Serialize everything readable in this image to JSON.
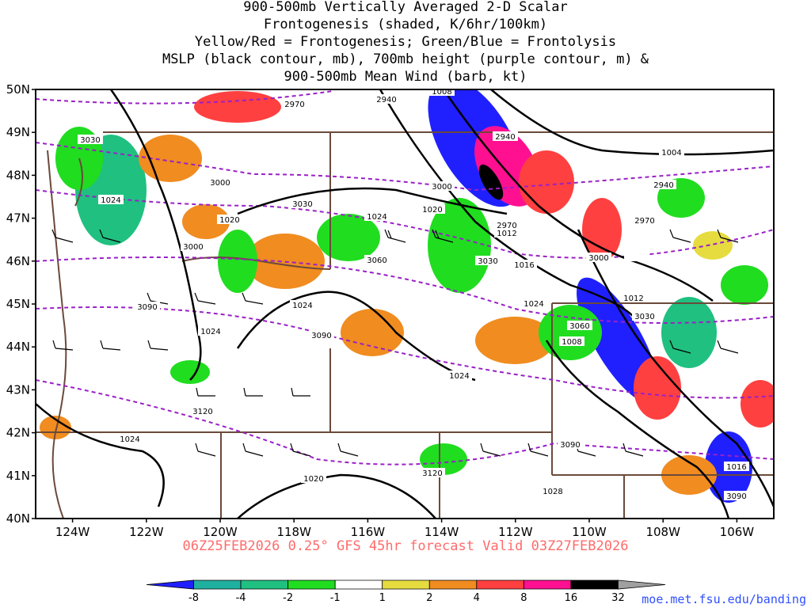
{
  "title_lines": [
    "900-500mb Vertically Averaged 2-D Scalar",
    "Frontogenesis (shaded, K/6hr/100km)",
    "Yellow/Red = Frontogenesis;  Green/Blue = Frontolysis",
    "MSLP (black contour, mb), 700mb height (purple contour, m) &",
    "900-500mb Mean Wind (barb, kt)"
  ],
  "valid_text": "06Z25FEB2026 0.25° GFS 45hr forecast Valid 03Z27FEB2026",
  "credit_text": "moe.met.fsu.edu/banding",
  "map": {
    "lon_range": [
      -125,
      -105
    ],
    "lat_range": [
      40,
      50
    ],
    "lat_ticks": [
      "40N",
      "41N",
      "42N",
      "43N",
      "44N",
      "45N",
      "46N",
      "47N",
      "48N",
      "49N",
      "50N"
    ],
    "lon_ticks": [
      "124W",
      "122W",
      "120W",
      "118W",
      "116W",
      "114W",
      "112W",
      "110W",
      "108W",
      "106W"
    ]
  },
  "colorbar": {
    "labels": [
      "-8",
      "-4",
      "-2",
      "-1",
      "1",
      "2",
      "4",
      "8",
      "16",
      "32"
    ],
    "colors": [
      "#2020ff",
      "#20b0a0",
      "#20c080",
      "#20dd20",
      "#ffffff",
      "#e6dc40",
      "#f08c20",
      "#ff4040",
      "#ff1090",
      "#000000",
      "#a0a0a0"
    ]
  },
  "mslp_labels": [
    "1008",
    "1004",
    "1012",
    "1012",
    "1016",
    "1016",
    "1020",
    "1020",
    "1020",
    "1024",
    "1024",
    "1024",
    "1024",
    "1024",
    "1024",
    "1024",
    "1028",
    "1008"
  ],
  "height_labels": [
    "2970",
    "2940",
    "2940",
    "2940",
    "2970",
    "2970",
    "3030",
    "3000",
    "3000",
    "3000",
    "3000",
    "3030",
    "3060",
    "3060",
    "3030",
    "3090",
    "3090",
    "3090",
    "3120",
    "3120",
    "3030",
    "3090"
  ]
}
